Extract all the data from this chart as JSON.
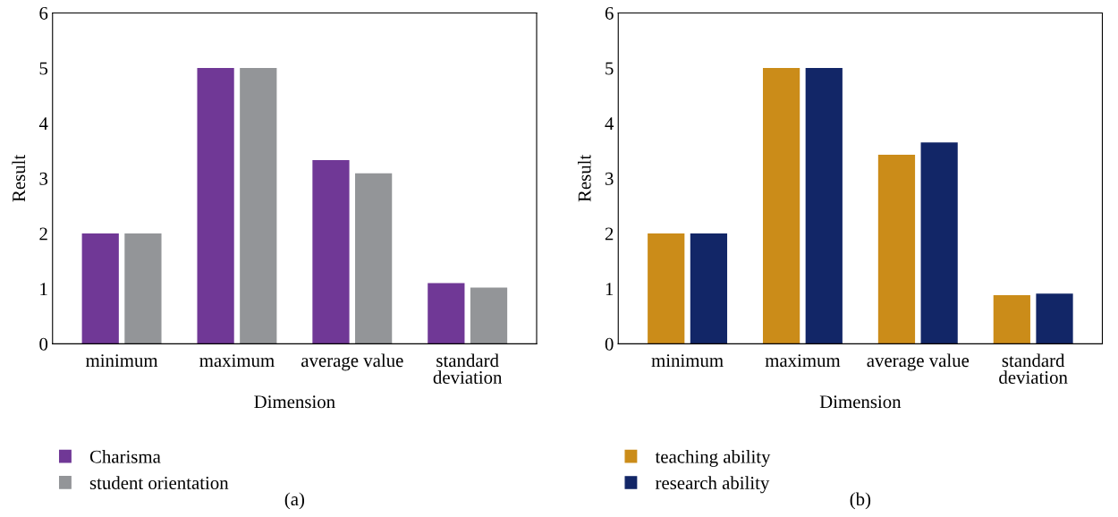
{
  "chart_data": [
    {
      "type": "bar",
      "xlabel": "Dimension",
      "ylabel": "Result",
      "categories": [
        "minimum",
        "maximum",
        "average value",
        "standard\ndeviation"
      ],
      "series": [
        {
          "name": "Charisma",
          "color": "#703896",
          "values": [
            2,
            5,
            3.33,
            1.1
          ]
        },
        {
          "name": "student orientation",
          "color": "#939598",
          "values": [
            2,
            5,
            3.09,
            1.02
          ]
        }
      ],
      "ylim": [
        0,
        6
      ],
      "yticks": [
        0,
        1,
        2,
        3,
        4,
        5,
        6
      ],
      "grid": false,
      "legend": "bottom left",
      "annotations": [
        "(a)"
      ]
    },
    {
      "type": "bar",
      "xlabel": "Dimension",
      "ylabel": "Result",
      "categories": [
        "minimum",
        "maximum",
        "average value",
        "standard\ndeviation"
      ],
      "series": [
        {
          "name": "teaching ability",
          "color": "#cb8c19",
          "values": [
            2,
            5,
            3.43,
            0.88
          ]
        },
        {
          "name": "research ability",
          "color": "#122667",
          "values": [
            2,
            5,
            3.65,
            0.91
          ]
        }
      ],
      "ylim": [
        0,
        6
      ],
      "yticks": [
        0,
        1,
        2,
        3,
        4,
        5,
        6
      ],
      "grid": false,
      "legend": "bottom left",
      "annotations": [
        "(b)"
      ]
    }
  ]
}
